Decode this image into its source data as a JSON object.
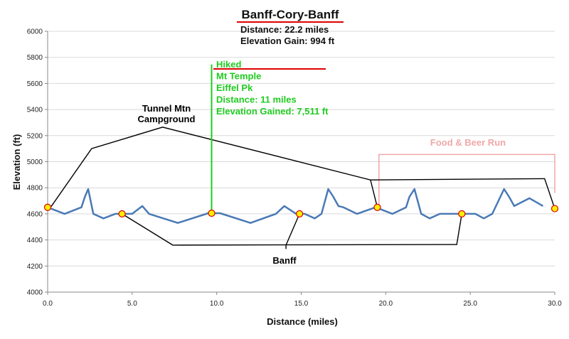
{
  "chart_data": {
    "type": "line",
    "title": "Banff-Cory-Banff",
    "subtitle_lines": [
      "Distance: 22.2 miles",
      "Elevation Gain: 994 ft"
    ],
    "xlabel": "Distance (miles)",
    "ylabel": "Elevation (ft)",
    "xlim": [
      0,
      30
    ],
    "ylim": [
      4000,
      6000
    ],
    "xticks": [
      0,
      5,
      10,
      15,
      20,
      25,
      30
    ],
    "xtick_labels": [
      "0.0",
      "5.0",
      "10.0",
      "15.0",
      "20.0",
      "25.0",
      "30.0"
    ],
    "yticks": [
      4000,
      4200,
      4400,
      4600,
      4800,
      5000,
      5200,
      5400,
      5600,
      5800,
      6000
    ],
    "ytick_labels": [
      "4000",
      "4200",
      "4400",
      "4600",
      "4800",
      "5000",
      "5200",
      "5400",
      "5600",
      "5800",
      "6000"
    ],
    "grid": "horizontal",
    "legend": "none",
    "series": [
      {
        "color": "#4a7ab5",
        "x": [
          0.0,
          1.0,
          2.0,
          2.2,
          2.4,
          2.7,
          3.3,
          4.0,
          4.4,
          5.0,
          5.6,
          6.0,
          7.7,
          9.5,
          10.2,
          12.0,
          13.5,
          14.0,
          14.7,
          15.2,
          15.8,
          16.2,
          16.6,
          16.9,
          17.2,
          17.5,
          18.3,
          19.4,
          20.4,
          21.2,
          21.4,
          21.7,
          22.1,
          22.6,
          23.2,
          24.6,
          25.3,
          25.8,
          26.3,
          27.0,
          27.3,
          27.6,
          28.5,
          29.3
        ],
        "y": [
          4650,
          4600,
          4650,
          4730,
          4790,
          4600,
          4565,
          4600,
          4600,
          4600,
          4660,
          4600,
          4530,
          4605,
          4605,
          4530,
          4600,
          4660,
          4600,
          4600,
          4565,
          4600,
          4790,
          4730,
          4660,
          4650,
          4600,
          4650,
          4600,
          4650,
          4730,
          4790,
          4600,
          4565,
          4600,
          4600,
          4600,
          4565,
          4600,
          4790,
          4730,
          4660,
          4720,
          4660
        ]
      }
    ],
    "markers": [
      {
        "x": 0.0,
        "y": 4650
      },
      {
        "x": 4.4,
        "y": 4600
      },
      {
        "x": 9.7,
        "y": 4605
      },
      {
        "x": 14.9,
        "y": 4600
      },
      {
        "x": 19.5,
        "y": 4650
      },
      {
        "x": 24.5,
        "y": 4600
      },
      {
        "x": 30.0,
        "y": 4640
      }
    ],
    "callouts": {
      "tunnel": {
        "lines": [
          "Tunnel Mtn",
          "Campground"
        ],
        "color": "#000000",
        "path": [
          [
            0.2,
            4655
          ],
          [
            2.6,
            5100
          ],
          [
            6.8,
            5265
          ],
          [
            19.1,
            4860
          ],
          [
            19.5,
            4650
          ]
        ]
      },
      "banff": {
        "lines": [
          "Banff"
        ],
        "color": "#000000",
        "path": [
          [
            4.4,
            4600
          ],
          [
            7.4,
            4360
          ],
          [
            24.2,
            4365
          ],
          [
            24.5,
            4600
          ]
        ],
        "branch": [
          [
            14.9,
            4600
          ],
          [
            14.1,
            4360
          ],
          [
            14.1,
            4330
          ]
        ]
      },
      "hiked": {
        "lines": [
          "Hiked",
          "Mt Temple",
          "Eiffel Pk",
          "Distance: 11 miles",
          "Elevation Gained: 7,511 ft"
        ],
        "color": "#1fcc1f",
        "underline_color": "#e00000",
        "path": [
          [
            9.7,
            4610
          ],
          [
            9.7,
            5745
          ]
        ]
      },
      "food": {
        "lines": [
          "Food & Beer Run"
        ],
        "color": "#f0a8a8",
        "path": [
          [
            19.6,
            4650
          ],
          [
            19.6,
            5055
          ],
          [
            30.0,
            5055
          ],
          [
            30.0,
            4760
          ]
        ],
        "return_path": [
          [
            30.0,
            4640
          ],
          [
            29.4,
            4870
          ],
          [
            19.1,
            4860
          ]
        ]
      }
    }
  }
}
